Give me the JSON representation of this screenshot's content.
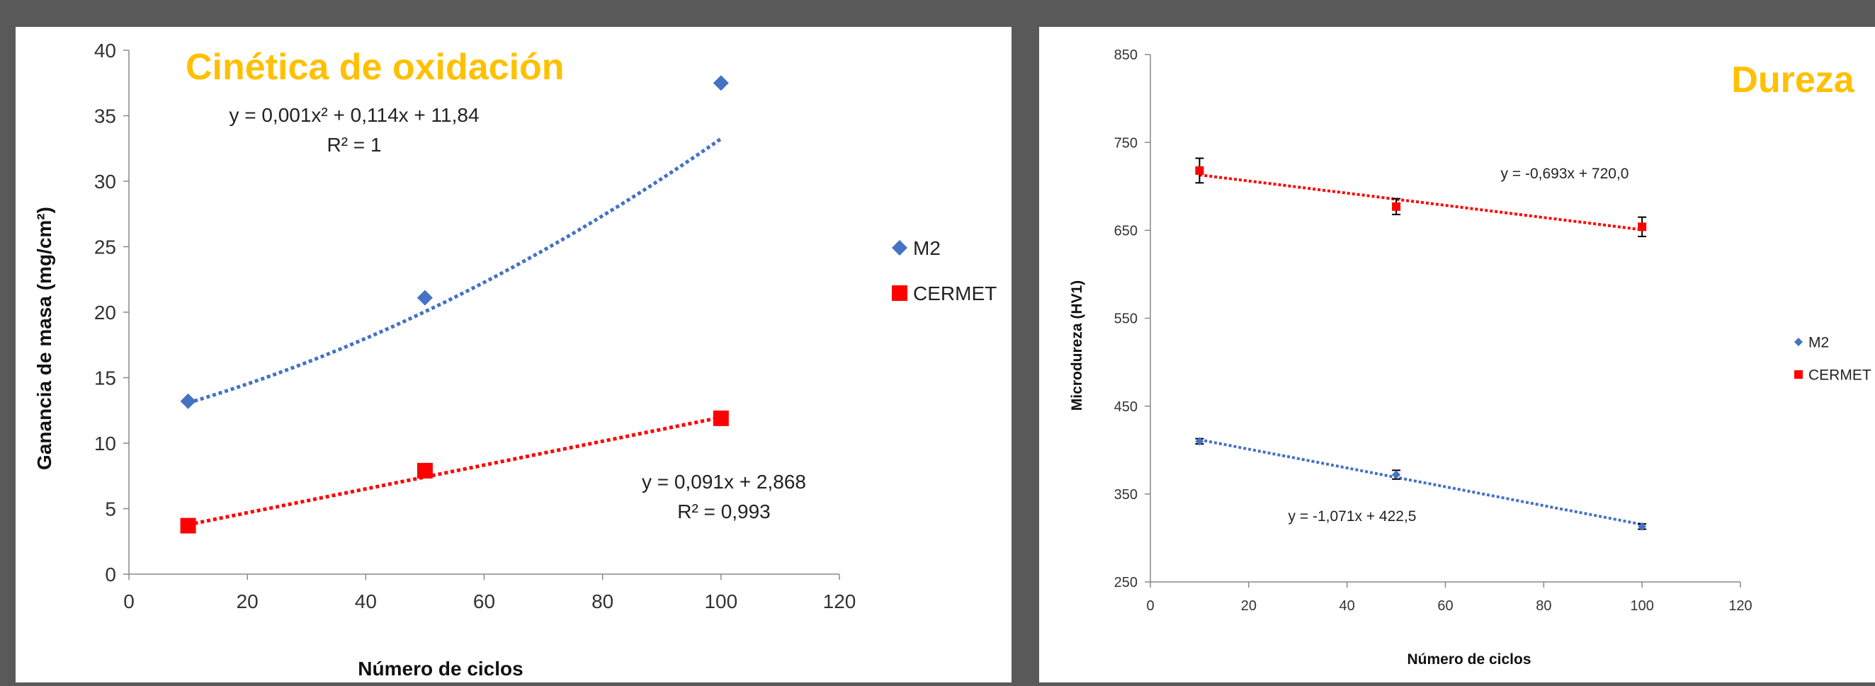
{
  "colors": {
    "background": "#595959",
    "m2": "#4472C4",
    "cermet": "#FF0000",
    "title": "#FFC000"
  },
  "chart_data": [
    {
      "type": "scatter",
      "title": "Cinética de oxidación",
      "xlabel": "Número de ciclos",
      "ylabel": "Ganancia de masa (mg/cm²)",
      "xlim": [
        0,
        120
      ],
      "ylim": [
        0,
        40
      ],
      "xticks": [
        "0",
        "20",
        "40",
        "60",
        "80",
        "100",
        "120"
      ],
      "yticks": [
        "0",
        "5",
        "10",
        "15",
        "20",
        "25",
        "30",
        "35",
        "40"
      ],
      "legend_position": "right",
      "series": [
        {
          "name": "M2",
          "marker": "diamond",
          "color": "#4472C4",
          "x": [
            10,
            50,
            100
          ],
          "y": [
            13.2,
            21.1,
            37.5
          ],
          "trendline": {
            "kind": "poly2",
            "coef": [
              0.001,
              0.114,
              11.84
            ]
          },
          "equation": "y = 0,001x² + 0,114x + 11,84",
          "r2": "R² = 1"
        },
        {
          "name": "CERMET",
          "marker": "square",
          "color": "#FF0000",
          "x": [
            10,
            50,
            100
          ],
          "y": [
            3.7,
            7.9,
            11.9
          ],
          "trendline": {
            "kind": "linear",
            "coef": [
              0.091,
              2.868
            ]
          },
          "equation": "y = 0,091x + 2,868",
          "r2": "R² = 0,993"
        }
      ]
    },
    {
      "type": "scatter",
      "title": "Dureza",
      "xlabel": "Número de ciclos",
      "ylabel": "Microdureza (HV1)",
      "xlim": [
        0,
        120
      ],
      "ylim": [
        250,
        850
      ],
      "xticks": [
        "0",
        "20",
        "40",
        "60",
        "80",
        "100",
        "120"
      ],
      "yticks": [
        "250",
        "350",
        "450",
        "550",
        "650",
        "750",
        "850"
      ],
      "legend_position": "right",
      "series": [
        {
          "name": "M2",
          "marker": "diamond",
          "color": "#4472C4",
          "x": [
            10,
            50,
            100
          ],
          "y": [
            410,
            372,
            313
          ],
          "error": [
            3,
            5,
            3
          ],
          "trendline": {
            "kind": "linear",
            "coef": [
              -1.071,
              422.5
            ]
          },
          "equation": "y = -1,071x + 422,5"
        },
        {
          "name": "CERMET",
          "marker": "square",
          "color": "#FF0000",
          "x": [
            10,
            50,
            100
          ],
          "y": [
            718,
            677,
            654
          ],
          "error": [
            14,
            9,
            11
          ],
          "trendline": {
            "kind": "linear",
            "coef": [
              -0.693,
              720.0
            ]
          },
          "equation": "y = -0,693x + 720,0"
        }
      ]
    }
  ]
}
